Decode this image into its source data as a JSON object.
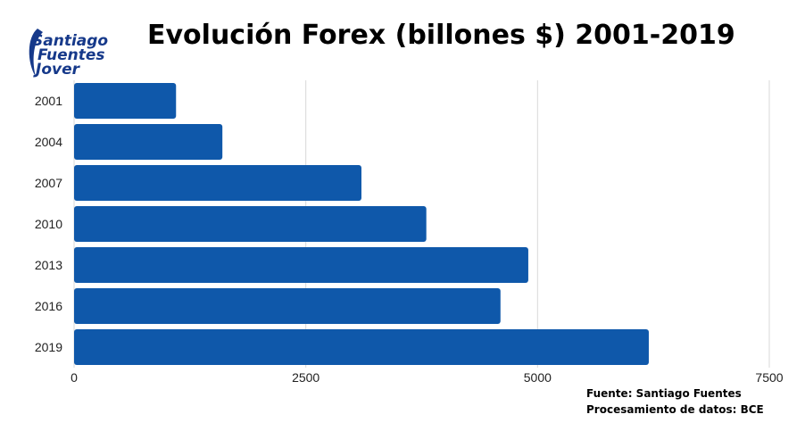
{
  "logo": {
    "line1": "Santiago",
    "line2": "Fuentes",
    "line3": "Jover",
    "color": "#16398a"
  },
  "chart_data": {
    "type": "bar",
    "orientation": "horizontal",
    "title": "Evolución Forex (billones $) 2001-2019",
    "categories": [
      "2001",
      "2004",
      "2007",
      "2010",
      "2013",
      "2016",
      "2019"
    ],
    "values": [
      1100,
      1600,
      3100,
      3800,
      4900,
      4600,
      6200
    ],
    "xlim": [
      0,
      7500
    ],
    "xticks": [
      0,
      2500,
      5000,
      7500
    ],
    "xlabel": "",
    "ylabel": "",
    "grid": "vertical",
    "bar_color": "#0f58aa"
  },
  "source": {
    "line1": "Fuente: Santiago Fuentes",
    "line2": "Procesamiento de datos: BCE"
  }
}
